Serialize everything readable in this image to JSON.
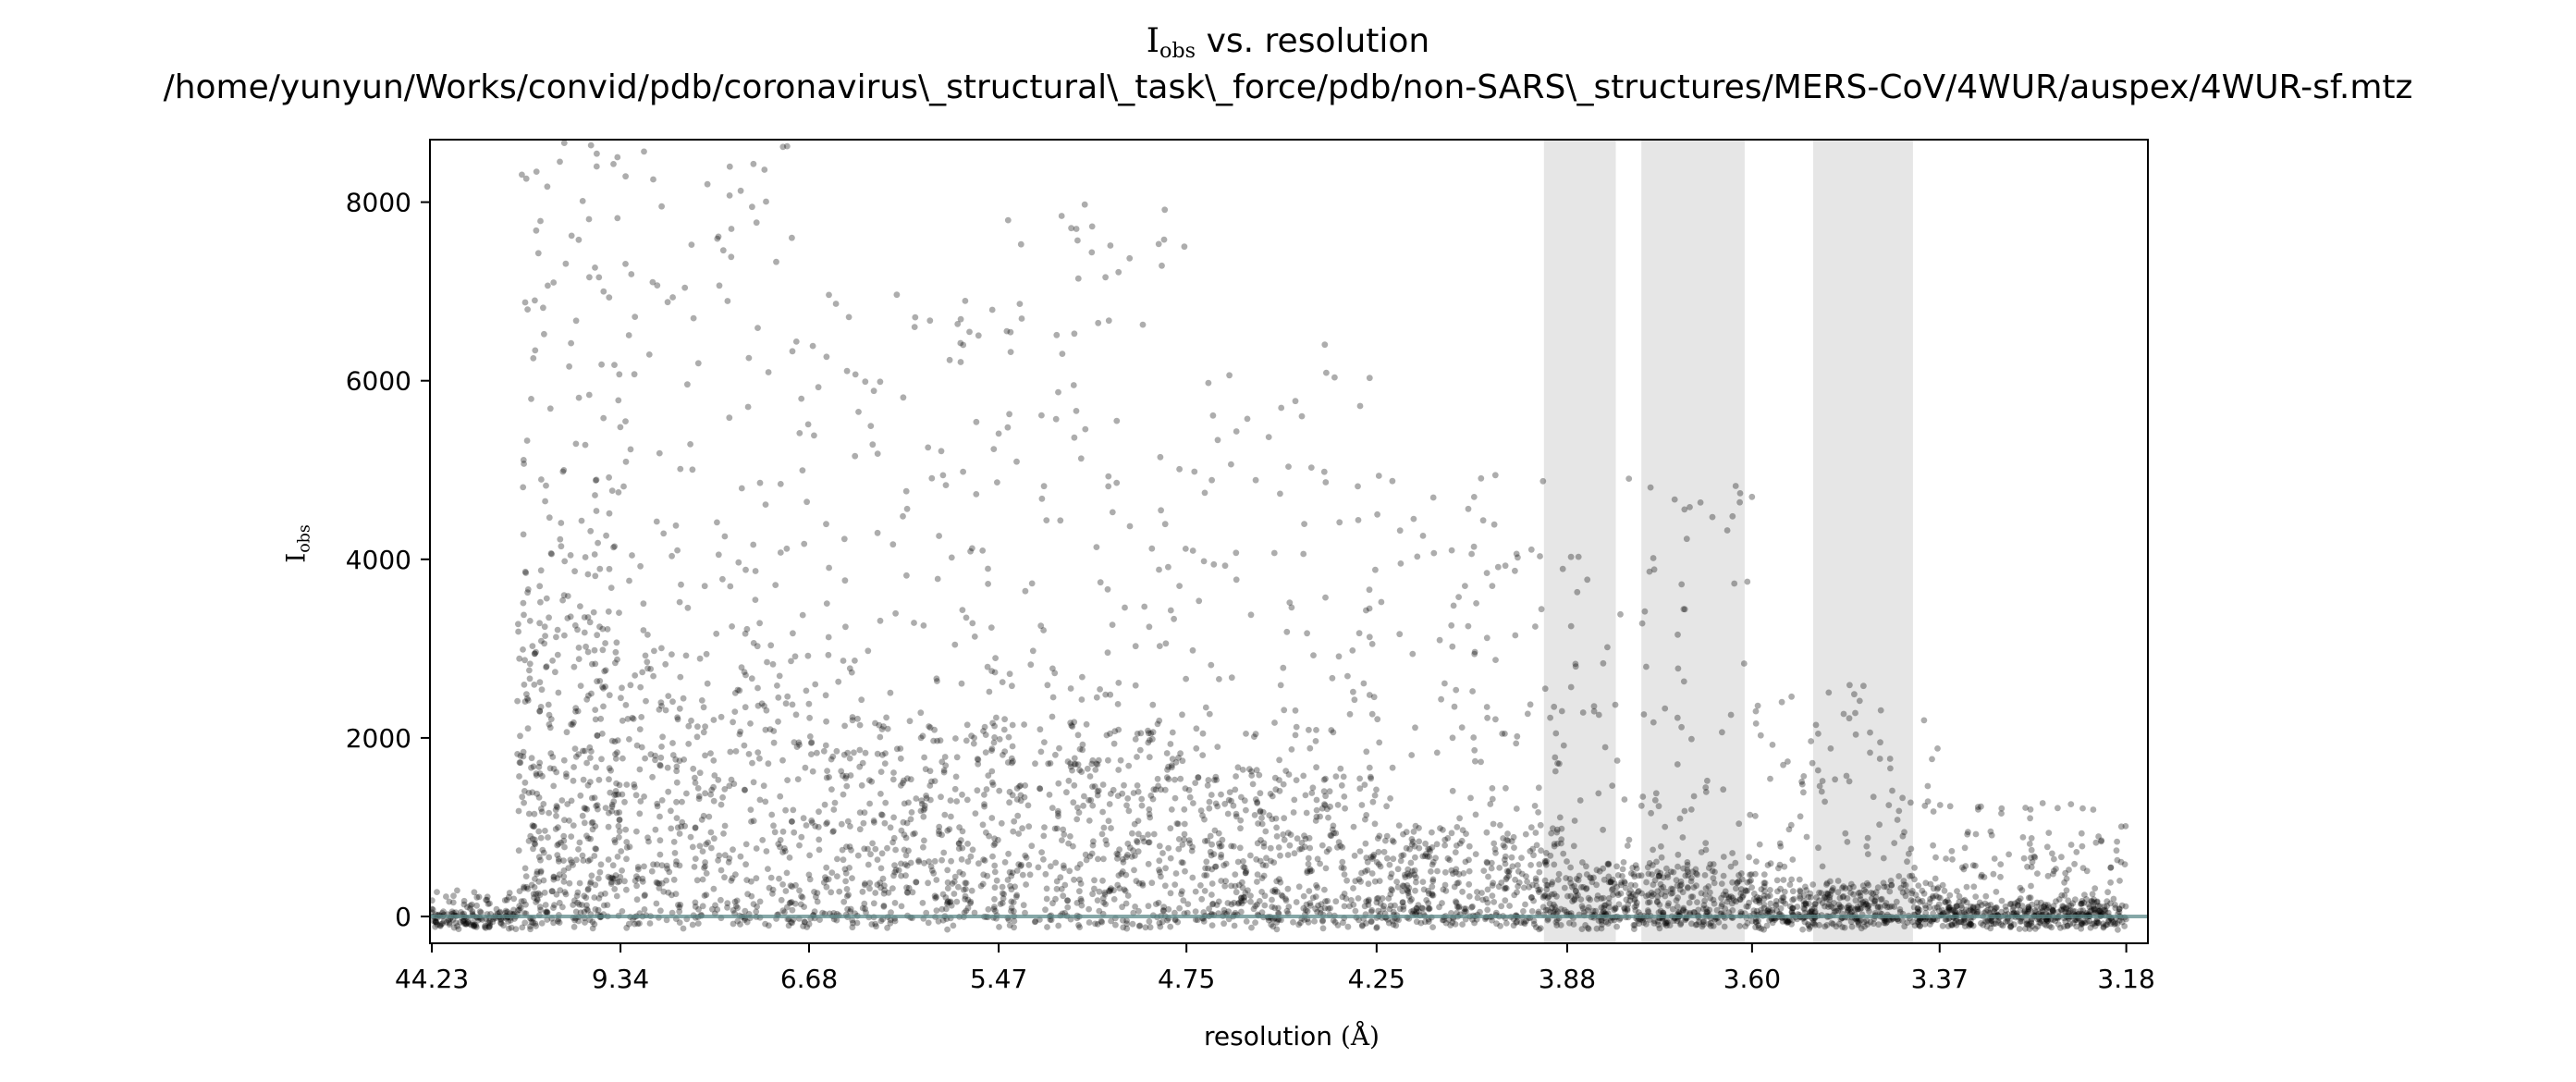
{
  "chart_data": {
    "type": "scatter",
    "title": {
      "main": "I",
      "main_subscript": "obs",
      "main_suffix": " vs. resolution",
      "path": "/home/yunyun/Works/convid/pdb/coronavirus\\_structural\\_task\\_force/pdb/non-SARS\\_structures/MERS-CoV/4WUR/auspex/4WUR-sf.mtz"
    },
    "ylabel": {
      "main": "I",
      "subscript": "obs"
    },
    "xlabel": {
      "text": "resolution ",
      "unit": "(Å)"
    },
    "x_scale": "1/d^2",
    "x_ticks": [
      "44.23",
      "9.34",
      "6.68",
      "5.47",
      "4.75",
      "4.25",
      "3.88",
      "3.60",
      "3.37",
      "3.18"
    ],
    "x_range_resolution": [
      50.0,
      3.16
    ],
    "y_ticks": [
      0,
      2000,
      4000,
      6000,
      8000
    ],
    "ylim": [
      -300,
      8700
    ],
    "grid": false,
    "ice_ring_bands": [
      {
        "from": 3.92,
        "to": 3.8
      },
      {
        "from": 3.76,
        "to": 3.61
      },
      {
        "from": 3.52,
        "to": 3.4
      }
    ],
    "reference_line_y": 0,
    "point_color": "#000000",
    "band_color": "#e6e6e6",
    "line_color": "#5c8a8a",
    "binned_distribution": [
      {
        "d_from": 44.23,
        "d_to": 13.6,
        "typical_max": 120,
        "spread_max": 300
      },
      {
        "d_from": 13.6,
        "d_to": 9.34,
        "typical_max": 3500,
        "spread_max": 8700
      },
      {
        "d_from": 9.34,
        "d_to": 6.68,
        "typical_max": 3000,
        "spread_max": 8700
      },
      {
        "d_from": 6.68,
        "d_to": 5.47,
        "typical_max": 2400,
        "spread_max": 7000
      },
      {
        "d_from": 5.47,
        "d_to": 4.75,
        "typical_max": 2300,
        "spread_max": 8000
      },
      {
        "d_from": 4.75,
        "d_to": 4.25,
        "typical_max": 1800,
        "spread_max": 6500
      },
      {
        "d_from": 4.25,
        "d_to": 3.88,
        "typical_max": 1100,
        "spread_max": 5000
      },
      {
        "d_from": 3.88,
        "d_to": 3.6,
        "typical_max": 700,
        "spread_max": 5000
      },
      {
        "d_from": 3.6,
        "d_to": 3.37,
        "typical_max": 450,
        "spread_max": 2600
      },
      {
        "d_from": 3.37,
        "d_to": 3.18,
        "typical_max": 250,
        "spread_max": 1300
      }
    ]
  }
}
